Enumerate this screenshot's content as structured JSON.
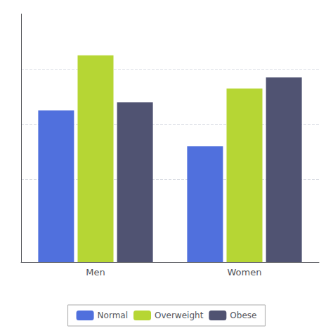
{
  "chart_data": {
    "type": "bar",
    "categories": [
      "Men",
      "Women"
    ],
    "series": [
      {
        "name": "Normal",
        "values": [
          55,
          42
        ]
      },
      {
        "name": "Overweight",
        "values": [
          75,
          63
        ]
      },
      {
        "name": "Obese",
        "values": [
          58,
          67
        ]
      }
    ],
    "ylim": [
      0,
      90
    ],
    "yticks": [
      30,
      50,
      70
    ],
    "grid": true,
    "legend": "bottom",
    "tick_labels": "x"
  }
}
